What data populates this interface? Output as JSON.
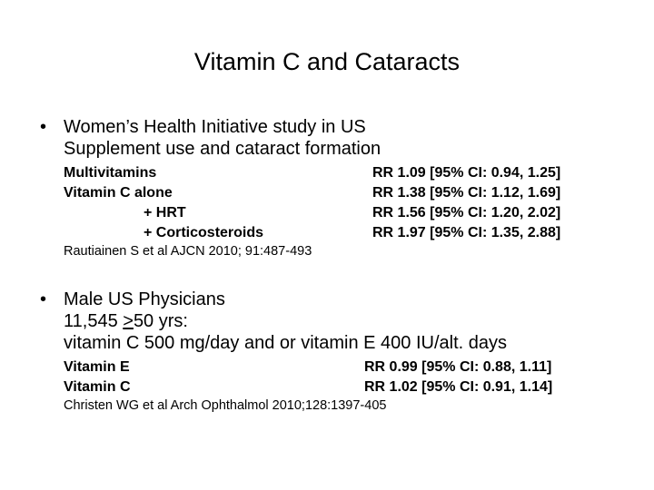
{
  "slide": {
    "title": "Vitamin C and Cataracts",
    "sections": [
      {
        "bullet": "•",
        "lines": [
          "Women’s Health Initiative study in US",
          "Supplement use and cataract formation"
        ],
        "rows": [
          {
            "label": "Multivitamins",
            "value": "RR 1.09 [95% CI: 0.94, 1.25]"
          },
          {
            "label": "Vitamin C alone",
            "value": "RR 1.38 [95% CI: 1.12, 1.69]"
          },
          {
            "label": "+ HRT",
            "value": "RR 1.56 [95% CI: 1.20, 2.02]"
          },
          {
            "label": "+ Corticosteroids",
            "value": "RR 1.97 [95% CI: 1.35, 2.88]"
          }
        ],
        "reference": "Rautiainen S et al AJCN 2010; 91:487-493"
      },
      {
        "bullet": "•",
        "lines": [
          "Male US Physicians",
          {
            "before": "11,545 ",
            "underlined": ">",
            "after": "50 yrs:"
          },
          "vitamin C 500 mg/day and or vitamin E 400 IU/alt. days"
        ],
        "rows": [
          {
            "label": "Vitamin E",
            "value": "RR 0.99 [95% CI: 0.88, 1.11]"
          },
          {
            "label": "Vitamin C",
            "value": "RR 1.02 [95% CI: 0.91, 1.14]"
          }
        ],
        "reference": "Christen WG et al Arch Ophthalmol 2010;128:1397-405"
      }
    ]
  }
}
